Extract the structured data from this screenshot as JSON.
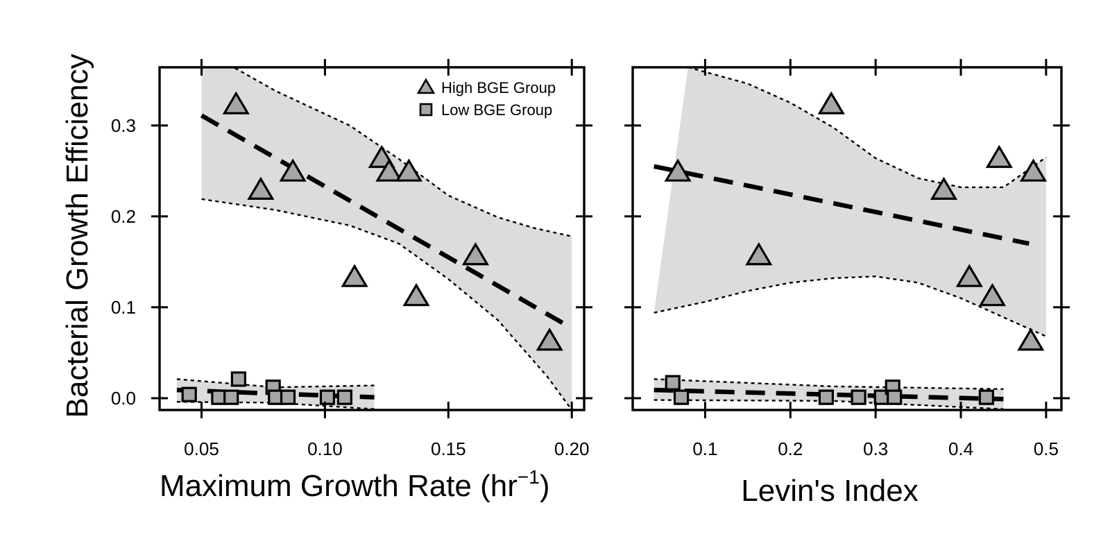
{
  "chart_data": [
    {
      "type": "scatter",
      "panel": "left",
      "xlabel_main": "Maximum Growth Rate (hr",
      "xlabel_sup": "−1",
      "xlabel_tail": ")",
      "ylabel": "Bacterial Growth Efficiency",
      "xlim": [
        0.033,
        0.205
      ],
      "ylim": [
        -0.013,
        0.364
      ],
      "xticks": [
        0.05,
        0.1,
        0.15,
        0.2
      ],
      "xtick_labels": [
        "0.05",
        "0.10",
        "0.15",
        "0.20"
      ],
      "yticks": [
        0.0,
        0.1,
        0.2,
        0.3
      ],
      "ytick_labels": [
        "0.0",
        "0.1",
        "0.2",
        "0.3"
      ],
      "legend": {
        "position": "top-right",
        "entries": [
          "High BGE Group",
          "Low BGE Group"
        ]
      },
      "series": [
        {
          "name": "High BGE Group",
          "marker": "triangle",
          "points": [
            [
              0.064,
              0.323
            ],
            [
              0.074,
              0.229
            ],
            [
              0.087,
              0.249
            ],
            [
              0.112,
              0.133
            ],
            [
              0.123,
              0.264
            ],
            [
              0.126,
              0.249
            ],
            [
              0.134,
              0.249
            ],
            [
              0.137,
              0.112
            ],
            [
              0.161,
              0.157
            ],
            [
              0.191,
              0.063
            ]
          ],
          "fit": {
            "x": [
              0.05,
              0.2
            ],
            "y": [
              0.311,
              0.077
            ]
          },
          "ci_lower": [
            [
              0.05,
              0.219
            ],
            [
              0.08,
              0.207
            ],
            [
              0.11,
              0.19
            ],
            [
              0.13,
              0.17
            ],
            [
              0.15,
              0.131
            ],
            [
              0.17,
              0.086
            ],
            [
              0.19,
              0.024
            ],
            [
              0.2,
              -0.013
            ]
          ],
          "ci_upper": [
            [
              0.05,
              0.373
            ],
            [
              0.063,
              0.364
            ],
            [
              0.08,
              0.338
            ],
            [
              0.11,
              0.3
            ],
            [
              0.13,
              0.263
            ],
            [
              0.15,
              0.223
            ],
            [
              0.17,
              0.199
            ],
            [
              0.185,
              0.187
            ],
            [
              0.2,
              0.178
            ]
          ]
        },
        {
          "name": "Low BGE Group",
          "marker": "square",
          "points": [
            [
              0.045,
              0.004
            ],
            [
              0.057,
              0.001
            ],
            [
              0.062,
              0.001
            ],
            [
              0.065,
              0.021
            ],
            [
              0.079,
              0.012
            ],
            [
              0.08,
              0.001
            ],
            [
              0.085,
              0.001
            ],
            [
              0.101,
              0.001
            ],
            [
              0.108,
              0.001
            ]
          ],
          "fit": {
            "x": [
              0.04,
              0.12
            ],
            "y": [
              0.009,
              0.001
            ]
          },
          "ci_lower": [
            [
              0.04,
              -0.004
            ],
            [
              0.08,
              -0.005
            ],
            [
              0.12,
              -0.012
            ]
          ],
          "ci_upper": [
            [
              0.04,
              0.021
            ],
            [
              0.08,
              0.012
            ],
            [
              0.12,
              0.014
            ]
          ]
        }
      ]
    },
    {
      "type": "scatter",
      "panel": "right",
      "xlabel": "Levin's Index",
      "xlim": [
        0.015,
        0.518
      ],
      "ylim": [
        -0.013,
        0.364
      ],
      "xticks": [
        0.1,
        0.2,
        0.3,
        0.4,
        0.5
      ],
      "xtick_labels": [
        "0.1",
        "0.2",
        "0.3",
        "0.4",
        "0.5"
      ],
      "yticks": [
        0.0,
        0.1,
        0.2,
        0.3
      ],
      "series": [
        {
          "name": "High BGE Group",
          "marker": "triangle",
          "points": [
            [
              0.068,
              0.249
            ],
            [
              0.163,
              0.157
            ],
            [
              0.248,
              0.323
            ],
            [
              0.38,
              0.229
            ],
            [
              0.41,
              0.133
            ],
            [
              0.437,
              0.112
            ],
            [
              0.445,
              0.264
            ],
            [
              0.482,
              0.063
            ],
            [
              0.485,
              0.249
            ]
          ],
          "fit": {
            "x": [
              0.04,
              0.48
            ],
            "y": [
              0.255,
              0.17
            ]
          },
          "ci_lower": [
            [
              0.04,
              0.094
            ],
            [
              0.1,
              0.106
            ],
            [
              0.15,
              0.118
            ],
            [
              0.2,
              0.127
            ],
            [
              0.25,
              0.132
            ],
            [
              0.3,
              0.134
            ],
            [
              0.35,
              0.127
            ],
            [
              0.4,
              0.11
            ],
            [
              0.45,
              0.089
            ],
            [
              0.5,
              0.068
            ]
          ],
          "ci_upper": [
            [
              0.08,
              0.364
            ],
            [
              0.15,
              0.346
            ],
            [
              0.2,
              0.325
            ],
            [
              0.25,
              0.298
            ],
            [
              0.3,
              0.264
            ],
            [
              0.35,
              0.242
            ],
            [
              0.4,
              0.232
            ],
            [
              0.45,
              0.232
            ],
            [
              0.5,
              0.265
            ]
          ]
        },
        {
          "name": "Low BGE Group",
          "marker": "square",
          "points": [
            [
              0.062,
              0.017
            ],
            [
              0.072,
              0.001
            ],
            [
              0.242,
              0.001
            ],
            [
              0.28,
              0.001
            ],
            [
              0.307,
              0.001
            ],
            [
              0.32,
              0.012
            ],
            [
              0.322,
              0.001
            ],
            [
              0.43,
              0.001
            ]
          ],
          "fit": {
            "x": [
              0.04,
              0.45
            ],
            "y": [
              0.009,
              -0.001
            ]
          },
          "ci_lower": [
            [
              0.04,
              -0.002
            ],
            [
              0.25,
              -0.003
            ],
            [
              0.45,
              -0.012
            ]
          ],
          "ci_upper": [
            [
              0.04,
              0.021
            ],
            [
              0.25,
              0.013
            ],
            [
              0.45,
              0.01
            ]
          ]
        }
      ]
    }
  ]
}
